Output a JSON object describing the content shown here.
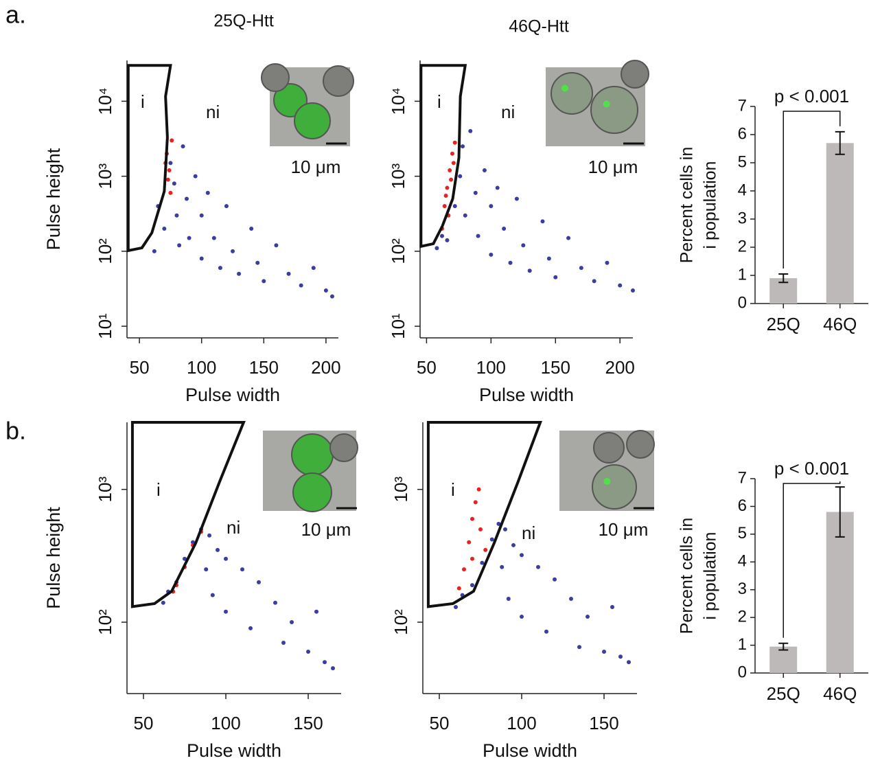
{
  "panel_labels": [
    "a.",
    "b."
  ],
  "chart_data": [
    {
      "type": "scatter",
      "title": "25Q-Htt",
      "xlabel": "Pulse width",
      "ylabel": "Pulse height",
      "log_y": true,
      "xlim": [
        40,
        210
      ],
      "xticks": [
        50,
        100,
        150,
        200
      ],
      "ylim": [
        7,
        35000
      ],
      "yticks": [
        {
          "value": 10,
          "label": "10¹"
        },
        {
          "value": 100,
          "label": "10²"
        },
        {
          "value": 1000,
          "label": "10³"
        },
        {
          "value": 10000,
          "label": "10⁴"
        }
      ],
      "annotations": [
        "i",
        "ni"
      ],
      "inset_label": "10 μm",
      "gate": {
        "x": [
          41,
          75,
          71,
          72.5,
          70,
          60,
          52,
          41
        ],
        "y": [
          30000,
          30000,
          11600,
          3300,
          630,
          176,
          111,
          102
        ]
      },
      "series": [
        {
          "color": "#3a3ea0",
          "x": [
            62,
            65,
            70,
            75,
            78,
            80,
            82,
            85,
            88,
            90,
            95,
            100,
            100,
            105,
            110,
            115,
            120,
            125,
            130,
            140,
            145,
            150,
            160,
            170,
            180,
            190,
            200,
            205
          ],
          "values": [
            100,
            400,
            200,
            1500,
            800,
            300,
            120,
            2500,
            500,
            150,
            1000,
            300,
            80,
            600,
            150,
            60,
            400,
            100,
            50,
            200,
            70,
            40,
            120,
            50,
            35,
            60,
            30,
            25
          ]
        },
        {
          "color": "#e8231f",
          "x": [
            72,
            74,
            75,
            73,
            76,
            71
          ],
          "values": [
            2000,
            1200,
            600,
            900,
            3000,
            1500
          ]
        }
      ]
    },
    {
      "type": "scatter",
      "title": "46Q-Htt",
      "xlabel": "Pulse width",
      "ylabel": null,
      "log_y": true,
      "xlim": [
        45,
        210
      ],
      "xticks": [
        50,
        100,
        150,
        200
      ],
      "ylim": [
        7,
        35000
      ],
      "yticks": [
        {
          "value": 10,
          "label": "10¹"
        },
        {
          "value": 100,
          "label": "10²"
        },
        {
          "value": 1000,
          "label": "10³"
        },
        {
          "value": 10000,
          "label": "10⁴"
        }
      ],
      "annotations": [
        "i",
        "ni"
      ],
      "inset_label": "10 μm",
      "gate": {
        "x": [
          45.7,
          80,
          76.2,
          75.1,
          70.3,
          62.3,
          55.3,
          45.7
        ],
        "y": [
          30000,
          30000,
          11600,
          1760,
          500,
          217,
          126,
          116
        ]
      },
      "series": [
        {
          "color": "#3a3ea0",
          "x": [
            58,
            62,
            66,
            72,
            76,
            78,
            80,
            84,
            88,
            90,
            95,
            100,
            100,
            105,
            110,
            115,
            120,
            125,
            130,
            140,
            145,
            150,
            160,
            170,
            180,
            190,
            200,
            210
          ],
          "values": [
            110,
            160,
            140,
            400,
            1000,
            2500,
            300,
            4000,
            600,
            160,
            1200,
            400,
            90,
            700,
            200,
            70,
            500,
            120,
            55,
            250,
            80,
            45,
            150,
            60,
            40,
            70,
            35,
            30
          ]
        },
        {
          "color": "#e8231f",
          "x": [
            62,
            64,
            66,
            68,
            70,
            72,
            67,
            69,
            71,
            65
          ],
          "values": [
            200,
            400,
            700,
            1200,
            2000,
            2800,
            300,
            900,
            1500,
            550
          ]
        }
      ]
    },
    {
      "type": "bar",
      "ylabel": [
        "Percent cells in",
        "i population"
      ],
      "categories": [
        "25Q",
        "46Q"
      ],
      "series": [
        {
          "color": "#bdb9b9",
          "values": [
            0.9,
            5.7
          ],
          "errors": [
            0.15,
            0.4
          ]
        }
      ],
      "ylim": [
        0,
        7
      ],
      "yticks": [
        0,
        1,
        2,
        3,
        4,
        5,
        6,
        7
      ],
      "annotation": "p < 0.001"
    },
    {
      "type": "scatter",
      "xlabel": "Pulse width",
      "ylabel": "Pulse height",
      "log_y": true,
      "xlim": [
        40,
        170
      ],
      "xticks": [
        50,
        100,
        150
      ],
      "ylim": [
        29,
        3200
      ],
      "yticks": [
        {
          "value": 100,
          "label": "10²"
        },
        {
          "value": 1000,
          "label": "10³"
        }
      ],
      "annotations": [
        "i",
        "ni"
      ],
      "inset_label": "10 μm",
      "gate": {
        "x": [
          43.3,
          110.8,
          96.3,
          81.7,
          67.1,
          56.7,
          43.3
        ],
        "y": [
          3200,
          3200,
          1150,
          394,
          171,
          138,
          131
        ]
      },
      "series": [
        {
          "color": "#3a3ea0",
          "x": [
            62,
            65,
            70,
            75,
            80,
            85,
            90,
            95,
            100,
            88,
            92,
            100,
            110,
            115,
            120,
            130,
            135,
            140,
            150,
            155,
            160,
            165
          ],
          "values": [
            140,
            170,
            200,
            300,
            400,
            500,
            450,
            350,
            300,
            250,
            160,
            120,
            250,
            90,
            200,
            140,
            70,
            100,
            60,
            120,
            50,
            45
          ]
        },
        {
          "color": "#e8231f",
          "x": [
            70,
            75,
            80,
            85,
            68
          ],
          "values": [
            190,
            260,
            380,
            480,
            170
          ]
        }
      ]
    },
    {
      "type": "scatter",
      "xlabel": "Pulse width",
      "ylabel": null,
      "log_y": true,
      "xlim": [
        40,
        170
      ],
      "xticks": [
        50,
        100,
        150
      ],
      "ylim": [
        29,
        3200
      ],
      "yticks": [
        {
          "value": 100,
          "label": "10²"
        },
        {
          "value": 1000,
          "label": "10³"
        }
      ],
      "annotations": [
        "i",
        "ni"
      ],
      "inset_label": "10 μm",
      "gate": {
        "x": [
          43.3,
          111.3,
          97.9,
          83.3,
          70.8,
          58.3,
          43.3
        ],
        "y": [
          3200,
          3200,
          1150,
          394,
          171,
          138,
          131
        ]
      },
      "series": [
        {
          "color": "#3a3ea0",
          "x": [
            60,
            64,
            70,
            76,
            82,
            86,
            90,
            95,
            100,
            88,
            92,
            100,
            110,
            115,
            120,
            130,
            135,
            140,
            150,
            155,
            160,
            165
          ],
          "values": [
            130,
            160,
            190,
            280,
            420,
            550,
            500,
            380,
            320,
            260,
            150,
            110,
            260,
            85,
            210,
            150,
            65,
            110,
            60,
            130,
            55,
            50
          ]
        },
        {
          "color": "#e8231f",
          "x": [
            62,
            65,
            68,
            70,
            72,
            75,
            78,
            70,
            74
          ],
          "values": [
            180,
            250,
            400,
            600,
            800,
            500,
            350,
            300,
            1000
          ]
        }
      ]
    },
    {
      "type": "bar",
      "ylabel": [
        "Percent cells in",
        "i population"
      ],
      "categories": [
        "25Q",
        "46Q"
      ],
      "series": [
        {
          "color": "#bdb9b9",
          "values": [
            0.95,
            5.8
          ],
          "errors": [
            0.12,
            0.9
          ]
        }
      ],
      "ylim": [
        0,
        7
      ],
      "yticks": [
        0,
        1,
        2,
        3,
        4,
        5,
        6,
        7
      ],
      "annotation": "p < 0.001"
    }
  ]
}
